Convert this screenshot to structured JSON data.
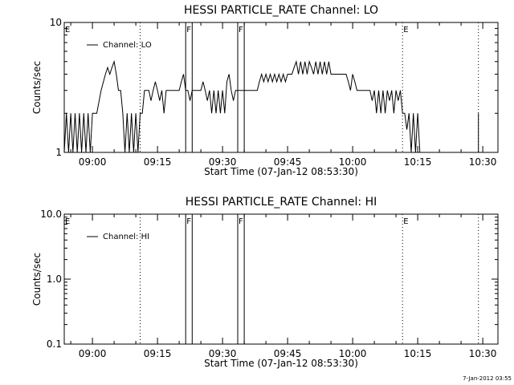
{
  "chart_data": [
    {
      "type": "line",
      "title": "HESSI PARTICLE_RATE Channel: LO",
      "xlabel": "Start Time (07-Jan-12 08:53:30)",
      "ylabel": "Counts/sec",
      "yscale": "log",
      "ylim": [
        1,
        10
      ],
      "yticks": [
        {
          "v": 1,
          "label": "1"
        },
        {
          "v": 10,
          "label": "10"
        }
      ],
      "xlim": [
        "08:53:30",
        "10:33:30"
      ],
      "xticks": [
        "09:00",
        "09:15",
        "09:30",
        "09:45",
        "10:00",
        "10:15",
        "10:30"
      ],
      "legend": {
        "label": "Channel: LO",
        "placement": "top-left"
      },
      "markers": [
        {
          "time": "08:53:30",
          "label": "E",
          "style": "none"
        },
        {
          "time": "09:11:00",
          "label": "",
          "style": "dotted"
        },
        {
          "time": "09:21:30",
          "label": "F",
          "style": "solid"
        },
        {
          "time": "09:23:00",
          "label": "",
          "style": "solid"
        },
        {
          "time": "09:33:30",
          "label": "F",
          "style": "solid"
        },
        {
          "time": "09:35:00",
          "label": "",
          "style": "solid"
        },
        {
          "time": "10:11:30",
          "label": "E",
          "style": "dotted"
        },
        {
          "time": "10:29:00",
          "label": "",
          "style": "dotted"
        }
      ],
      "series": [
        {
          "segments": [
            [
              [
                "08:53:30",
                1
              ],
              [
                "08:54:00",
                2
              ],
              [
                "08:54:30",
                1
              ],
              [
                "08:55:00",
                2
              ],
              [
                "08:55:30",
                1
              ],
              [
                "08:56:00",
                2
              ],
              [
                "08:56:30",
                1
              ],
              [
                "08:57:00",
                2
              ],
              [
                "08:57:30",
                1
              ],
              [
                "08:58:00",
                2
              ],
              [
                "08:58:30",
                1
              ],
              [
                "08:59:00",
                2
              ],
              [
                "08:59:30",
                1
              ],
              [
                "09:00:00",
                2
              ],
              [
                "09:01:00",
                2
              ],
              [
                "09:02:00",
                3
              ],
              [
                "09:03:00",
                4
              ],
              [
                "09:03:30",
                4.5
              ],
              [
                "09:04:00",
                4
              ],
              [
                "09:04:30",
                4.5
              ],
              [
                "09:05:00",
                5
              ],
              [
                "09:05:30",
                4
              ],
              [
                "09:06:00",
                3
              ],
              [
                "09:06:30",
                3
              ],
              [
                "09:07:00",
                2
              ],
              [
                "09:07:30",
                1
              ],
              [
                "09:08:00",
                2
              ],
              [
                "09:08:30",
                1
              ],
              [
                "09:09:00",
                2
              ],
              [
                "09:09:30",
                1
              ],
              [
                "09:10:00",
                2
              ],
              [
                "09:10:30",
                1
              ],
              [
                "09:11:00",
                2
              ],
              [
                "09:11:30",
                2
              ],
              [
                "09:12:00",
                3
              ],
              [
                "09:12:30",
                3
              ],
              [
                "09:13:00",
                3
              ],
              [
                "09:13:30",
                2.5
              ],
              [
                "09:14:00",
                3
              ],
              [
                "09:14:30",
                3.5
              ],
              [
                "09:15:00",
                3
              ],
              [
                "09:15:30",
                2.5
              ],
              [
                "09:16:00",
                3
              ],
              [
                "09:16:30",
                2
              ],
              [
                "09:17:00",
                3
              ],
              [
                "09:17:30",
                3
              ],
              [
                "09:18:00",
                3
              ],
              [
                "09:18:30",
                3
              ],
              [
                "09:19:00",
                3
              ],
              [
                "09:19:30",
                3
              ],
              [
                "09:20:00",
                3
              ],
              [
                "09:20:30",
                3.5
              ],
              [
                "09:21:00",
                4
              ],
              [
                "09:21:30",
                3
              ],
              [
                "09:22:00",
                3
              ],
              [
                "09:22:30",
                2.5
              ],
              [
                "09:23:00",
                3
              ],
              [
                "09:23:30",
                3
              ],
              [
                "09:24:00",
                3
              ],
              [
                "09:24:30",
                3
              ],
              [
                "09:25:00",
                3
              ],
              [
                "09:25:30",
                3.5
              ],
              [
                "09:26:00",
                3
              ],
              [
                "09:26:30",
                2.5
              ],
              [
                "09:27:00",
                3
              ],
              [
                "09:27:30",
                2
              ],
              [
                "09:28:00",
                3
              ],
              [
                "09:28:30",
                2
              ],
              [
                "09:29:00",
                3
              ],
              [
                "09:29:30",
                2
              ],
              [
                "09:30:00",
                3
              ],
              [
                "09:30:30",
                2
              ],
              [
                "09:31:00",
                3.5
              ],
              [
                "09:31:30",
                4
              ],
              [
                "09:32:00",
                3
              ],
              [
                "09:32:30",
                2.5
              ],
              [
                "09:33:00",
                3
              ],
              [
                "09:33:30",
                3
              ],
              [
                "09:34:00",
                3
              ],
              [
                "09:35:00",
                3
              ],
              [
                "09:36:00",
                3
              ],
              [
                "09:37:00",
                3
              ],
              [
                "09:38:00",
                3
              ],
              [
                "09:38:30",
                3.5
              ],
              [
                "09:39:00",
                4
              ],
              [
                "09:39:30",
                3.5
              ],
              [
                "09:40:00",
                4
              ],
              [
                "09:40:30",
                3.5
              ],
              [
                "09:41:00",
                4
              ],
              [
                "09:41:30",
                3.5
              ],
              [
                "09:42:00",
                4
              ],
              [
                "09:42:30",
                3.5
              ],
              [
                "09:43:00",
                4
              ],
              [
                "09:43:30",
                3.5
              ],
              [
                "09:44:00",
                4
              ],
              [
                "09:44:30",
                3.5
              ],
              [
                "09:45:00",
                4
              ],
              [
                "09:45:30",
                4
              ],
              [
                "09:46:00",
                4
              ],
              [
                "09:46:30",
                4.5
              ],
              [
                "09:47:00",
                5
              ],
              [
                "09:47:30",
                4
              ],
              [
                "09:48:00",
                5
              ],
              [
                "09:48:30",
                4
              ],
              [
                "09:49:00",
                5
              ],
              [
                "09:49:30",
                4
              ],
              [
                "09:50:00",
                5
              ],
              [
                "09:50:30",
                4.5
              ],
              [
                "09:51:00",
                4
              ],
              [
                "09:51:30",
                5
              ],
              [
                "09:52:00",
                4
              ],
              [
                "09:52:30",
                5
              ],
              [
                "09:53:00",
                4
              ],
              [
                "09:53:30",
                5
              ],
              [
                "09:54:00",
                4
              ],
              [
                "09:54:30",
                5
              ],
              [
                "09:55:00",
                4
              ],
              [
                "09:55:30",
                4
              ],
              [
                "09:56:00",
                4
              ],
              [
                "09:56:30",
                4
              ],
              [
                "09:57:00",
                4
              ],
              [
                "09:57:30",
                4
              ],
              [
                "09:58:00",
                4
              ],
              [
                "09:58:30",
                4
              ],
              [
                "09:59:00",
                3.5
              ],
              [
                "09:59:30",
                3
              ],
              [
                "10:00:00",
                4
              ],
              [
                "10:00:30",
                3.5
              ],
              [
                "10:01:00",
                3
              ],
              [
                "10:01:30",
                3
              ],
              [
                "10:02:00",
                3
              ],
              [
                "10:02:30",
                3
              ],
              [
                "10:03:00",
                3
              ],
              [
                "10:03:30",
                3
              ],
              [
                "10:04:00",
                3
              ],
              [
                "10:04:30",
                2.5
              ],
              [
                "10:05:00",
                3
              ],
              [
                "10:05:30",
                2
              ],
              [
                "10:06:00",
                3
              ],
              [
                "10:06:30",
                2
              ],
              [
                "10:07:00",
                3
              ],
              [
                "10:07:30",
                2
              ],
              [
                "10:08:00",
                3
              ],
              [
                "10:08:30",
                2.5
              ],
              [
                "10:09:00",
                3
              ],
              [
                "10:09:30",
                2
              ],
              [
                "10:10:00",
                3
              ],
              [
                "10:10:30",
                2.5
              ],
              [
                "10:11:00",
                3
              ],
              [
                "10:11:30",
                2
              ],
              [
                "10:12:00",
                2
              ],
              [
                "10:12:30",
                1.5
              ],
              [
                "10:13:00",
                2
              ],
              [
                "10:13:30",
                1
              ],
              [
                "10:14:00",
                2
              ],
              [
                "10:14:30",
                1
              ],
              [
                "10:15:00",
                2
              ],
              [
                "10:15:30",
                1
              ]
            ],
            [
              [
                "10:29:00",
                1
              ],
              [
                "10:29:00",
                2
              ]
            ]
          ]
        }
      ]
    },
    {
      "type": "line",
      "title": "HESSI PARTICLE_RATE Channel: HI",
      "xlabel": "Start Time (07-Jan-12 08:53:30)",
      "ylabel": "Counts/sec",
      "yscale": "log",
      "ylim": [
        0.1,
        10
      ],
      "yticks": [
        {
          "v": 0.1,
          "label": "0.1"
        },
        {
          "v": 1,
          "label": "1.0"
        },
        {
          "v": 10,
          "label": "10.0"
        }
      ],
      "xlim": [
        "08:53:30",
        "10:33:30"
      ],
      "xticks": [
        "09:00",
        "09:15",
        "09:30",
        "09:45",
        "10:00",
        "10:15",
        "10:30"
      ],
      "legend": {
        "label": "Channel: HI",
        "placement": "top-left"
      },
      "markers": [
        {
          "time": "08:53:30",
          "label": "E",
          "style": "none"
        },
        {
          "time": "09:11:00",
          "label": "",
          "style": "dotted"
        },
        {
          "time": "09:21:30",
          "label": "F",
          "style": "solid"
        },
        {
          "time": "09:23:00",
          "label": "",
          "style": "solid"
        },
        {
          "time": "09:33:30",
          "label": "F",
          "style": "solid"
        },
        {
          "time": "09:35:00",
          "label": "",
          "style": "solid"
        },
        {
          "time": "10:11:30",
          "label": "E",
          "style": "dotted"
        },
        {
          "time": "10:29:00",
          "label": "",
          "style": "dotted"
        }
      ],
      "series": [
        {
          "segments": []
        }
      ]
    }
  ],
  "footer": "7-Jan-2012 03:55"
}
